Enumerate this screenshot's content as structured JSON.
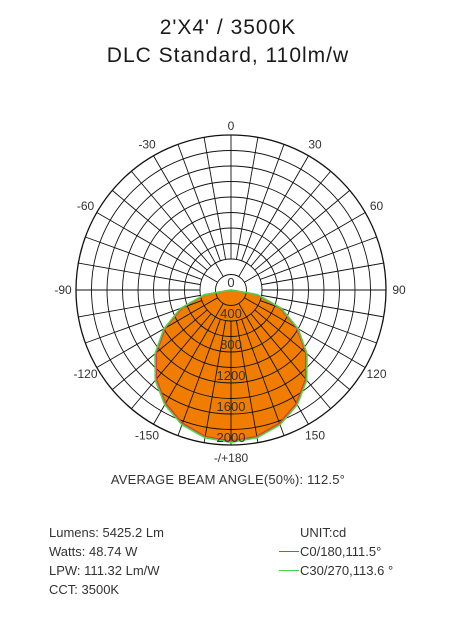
{
  "title_line1": "2'X4' / 3500K",
  "title_line2": "DLC Standard, 110lm/w",
  "beam_angle_text": "AVERAGE BEAM ANGLE(50%): 112.5°",
  "stats": {
    "lumens": "Lumens: 5425.2 Lm",
    "watts": "Watts: 48.74 W",
    "lpw": "LPW: 111.32 Lm/W",
    "cct": "CCT: 3500K"
  },
  "legend": {
    "unit": "UNIT:cd",
    "c0": "C0/180,111.5°",
    "c30": "C30/270,113.6 °"
  },
  "colors": {
    "fill": "#f07d00",
    "c0": "#e53935",
    "c30": "#4cd34c",
    "grid": "#111111"
  },
  "chart_data": {
    "type": "polar",
    "angular_labels": [
      "-/+180",
      "150",
      "120",
      "90",
      "60",
      "30",
      "0",
      "-30",
      "-60",
      "-90",
      "-120",
      "-150"
    ],
    "angular_label_angles": [
      180,
      150,
      120,
      90,
      60,
      30,
      0,
      -30,
      -60,
      -90,
      -120,
      -150
    ],
    "radial_max": 2000,
    "radial_ticks": [
      0,
      400,
      800,
      1200,
      1600,
      2000
    ],
    "radial_labels": [
      "0",
      "400",
      "800",
      "1200",
      "1600",
      "2000"
    ],
    "series": [
      {
        "name": "C0/180,111.5°",
        "color": "#e53935",
        "angles": [
          0,
          10,
          20,
          30,
          40,
          50,
          60,
          70,
          80,
          90
        ],
        "values": [
          1950,
          1920,
          1830,
          1690,
          1500,
          1260,
          980,
          670,
          340,
          0
        ]
      },
      {
        "name": "C30/270,113.6 °",
        "color": "#4cd34c",
        "angles": [
          0,
          10,
          20,
          30,
          40,
          50,
          60,
          70,
          80,
          90
        ],
        "values": [
          1965,
          1935,
          1850,
          1710,
          1520,
          1280,
          1000,
          690,
          350,
          0
        ]
      }
    ]
  }
}
